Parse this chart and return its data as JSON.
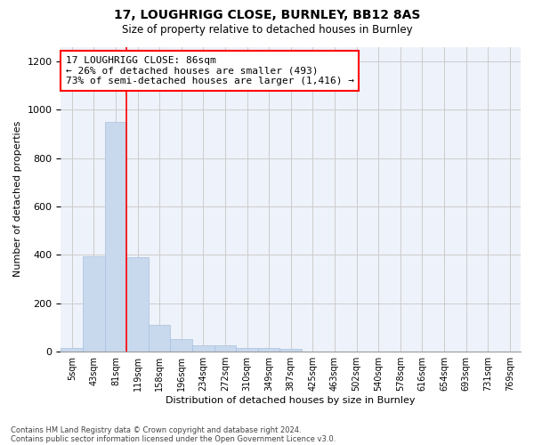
{
  "title1": "17, LOUGHRIGG CLOSE, BURNLEY, BB12 8AS",
  "title2": "Size of property relative to detached houses in Burnley",
  "xlabel": "Distribution of detached houses by size in Burnley",
  "ylabel": "Number of detached properties",
  "footnote1": "Contains HM Land Registry data © Crown copyright and database right 2024.",
  "footnote2": "Contains public sector information licensed under the Open Government Licence v3.0.",
  "annotation_line1": "17 LOUGHRIGG CLOSE: 86sqm",
  "annotation_line2": "← 26% of detached houses are smaller (493)",
  "annotation_line3": "73% of semi-detached houses are larger (1,416) →",
  "bar_color": "#c8d9ee",
  "bar_edge_color": "#a8c0de",
  "categories": [
    "5sqm",
    "43sqm",
    "81sqm",
    "119sqm",
    "158sqm",
    "196sqm",
    "234sqm",
    "272sqm",
    "310sqm",
    "349sqm",
    "387sqm",
    "425sqm",
    "463sqm",
    "502sqm",
    "540sqm",
    "578sqm",
    "616sqm",
    "654sqm",
    "693sqm",
    "731sqm",
    "769sqm"
  ],
  "values": [
    15,
    395,
    950,
    390,
    110,
    50,
    25,
    25,
    15,
    15,
    10,
    0,
    0,
    0,
    0,
    0,
    0,
    0,
    0,
    0,
    0
  ],
  "ylim": [
    0,
    1260
  ],
  "yticks": [
    0,
    200,
    400,
    600,
    800,
    1000,
    1200
  ],
  "red_line_x": 2.5,
  "grid_color": "#cccccc",
  "bg_color": "#eef2fa"
}
